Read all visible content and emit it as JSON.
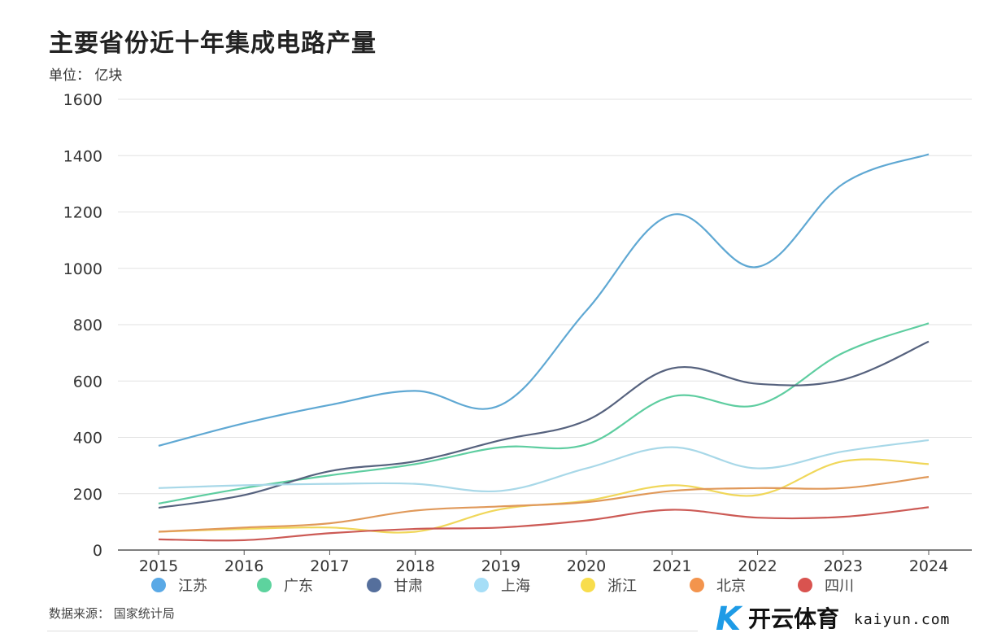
{
  "chart_data": {
    "type": "line",
    "title": "主要省份近十年集成电路产量",
    "unit_label": "单位： 亿块",
    "source": "数据来源： 国家统计局",
    "xlabel": "",
    "ylabel": "",
    "ylim": [
      0,
      1600
    ],
    "yticks": [
      0,
      200,
      400,
      600,
      800,
      1000,
      1200,
      1400,
      1600
    ],
    "grid": true,
    "legend_position": "bottom",
    "x": [
      "2015",
      "2016",
      "2017",
      "2018",
      "2019",
      "2020",
      "2021",
      "2022",
      "2023",
      "2024"
    ],
    "series": [
      {
        "name": "江苏",
        "color": "#5fa8d3",
        "legend_color": "#5aa9e6",
        "values": [
          370,
          450,
          515,
          565,
          515,
          850,
          1190,
          1005,
          1300,
          1405
        ]
      },
      {
        "name": "广东",
        "color": "#5ecda0",
        "legend_color": "#5dd39e",
        "values": [
          165,
          220,
          265,
          305,
          365,
          375,
          545,
          515,
          700,
          805
        ]
      },
      {
        "name": "甘肃",
        "color": "#56627e",
        "legend_color": "#556f9c",
        "values": [
          150,
          195,
          280,
          315,
          390,
          460,
          645,
          590,
          605,
          740
        ]
      },
      {
        "name": "上海",
        "color": "#a8d8e8",
        "legend_color": "#a6def7",
        "values": [
          220,
          230,
          235,
          235,
          210,
          290,
          365,
          290,
          350,
          390
        ]
      },
      {
        "name": "浙江",
        "color": "#f0d75a",
        "legend_color": "#f8dd4c",
        "values": [
          65,
          75,
          80,
          65,
          145,
          175,
          230,
          195,
          315,
          305
        ]
      },
      {
        "name": "北京",
        "color": "#e0995a",
        "legend_color": "#f3944d",
        "values": [
          65,
          80,
          95,
          140,
          155,
          170,
          210,
          220,
          220,
          260
        ]
      },
      {
        "name": "四川",
        "color": "#cc5a55",
        "legend_color": "#d9534f",
        "values": [
          38,
          35,
          60,
          75,
          80,
          105,
          143,
          115,
          118,
          152
        ]
      }
    ]
  },
  "watermark": {
    "brand_cn": "开云体育",
    "brand_en": "kaiyun.com",
    "mark": "K"
  }
}
